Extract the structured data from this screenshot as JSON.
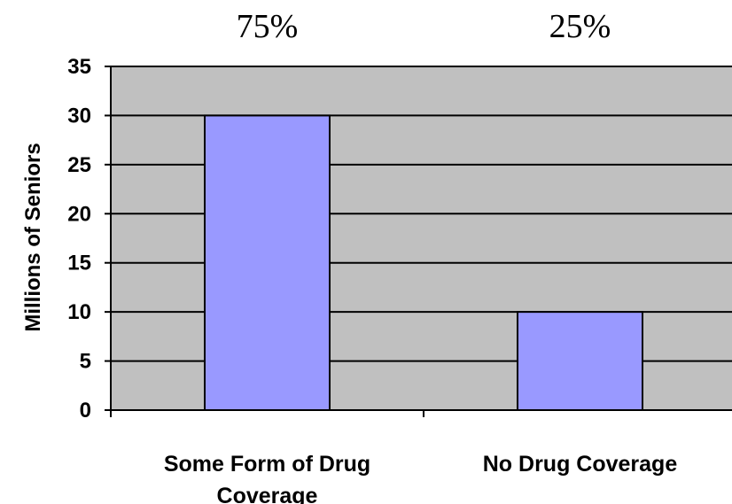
{
  "chart_data": {
    "type": "bar",
    "categories": [
      [
        "Some Form of Drug",
        "Coverage"
      ],
      [
        "No Drug Coverage"
      ]
    ],
    "values": [
      30,
      10
    ],
    "data_labels": [
      "75%",
      "25%"
    ],
    "title": "",
    "xlabel": "",
    "ylabel": "Millions of Seniors",
    "ylim": [
      0,
      35
    ],
    "yticks": [
      0,
      5,
      10,
      15,
      20,
      25,
      30,
      35
    ],
    "grid": true,
    "legend": "none",
    "colors": {
      "plot_background": "#c0c0c0",
      "bar_fill": "#9999ff",
      "bar_stroke": "#000000",
      "grid": "#000000"
    }
  }
}
